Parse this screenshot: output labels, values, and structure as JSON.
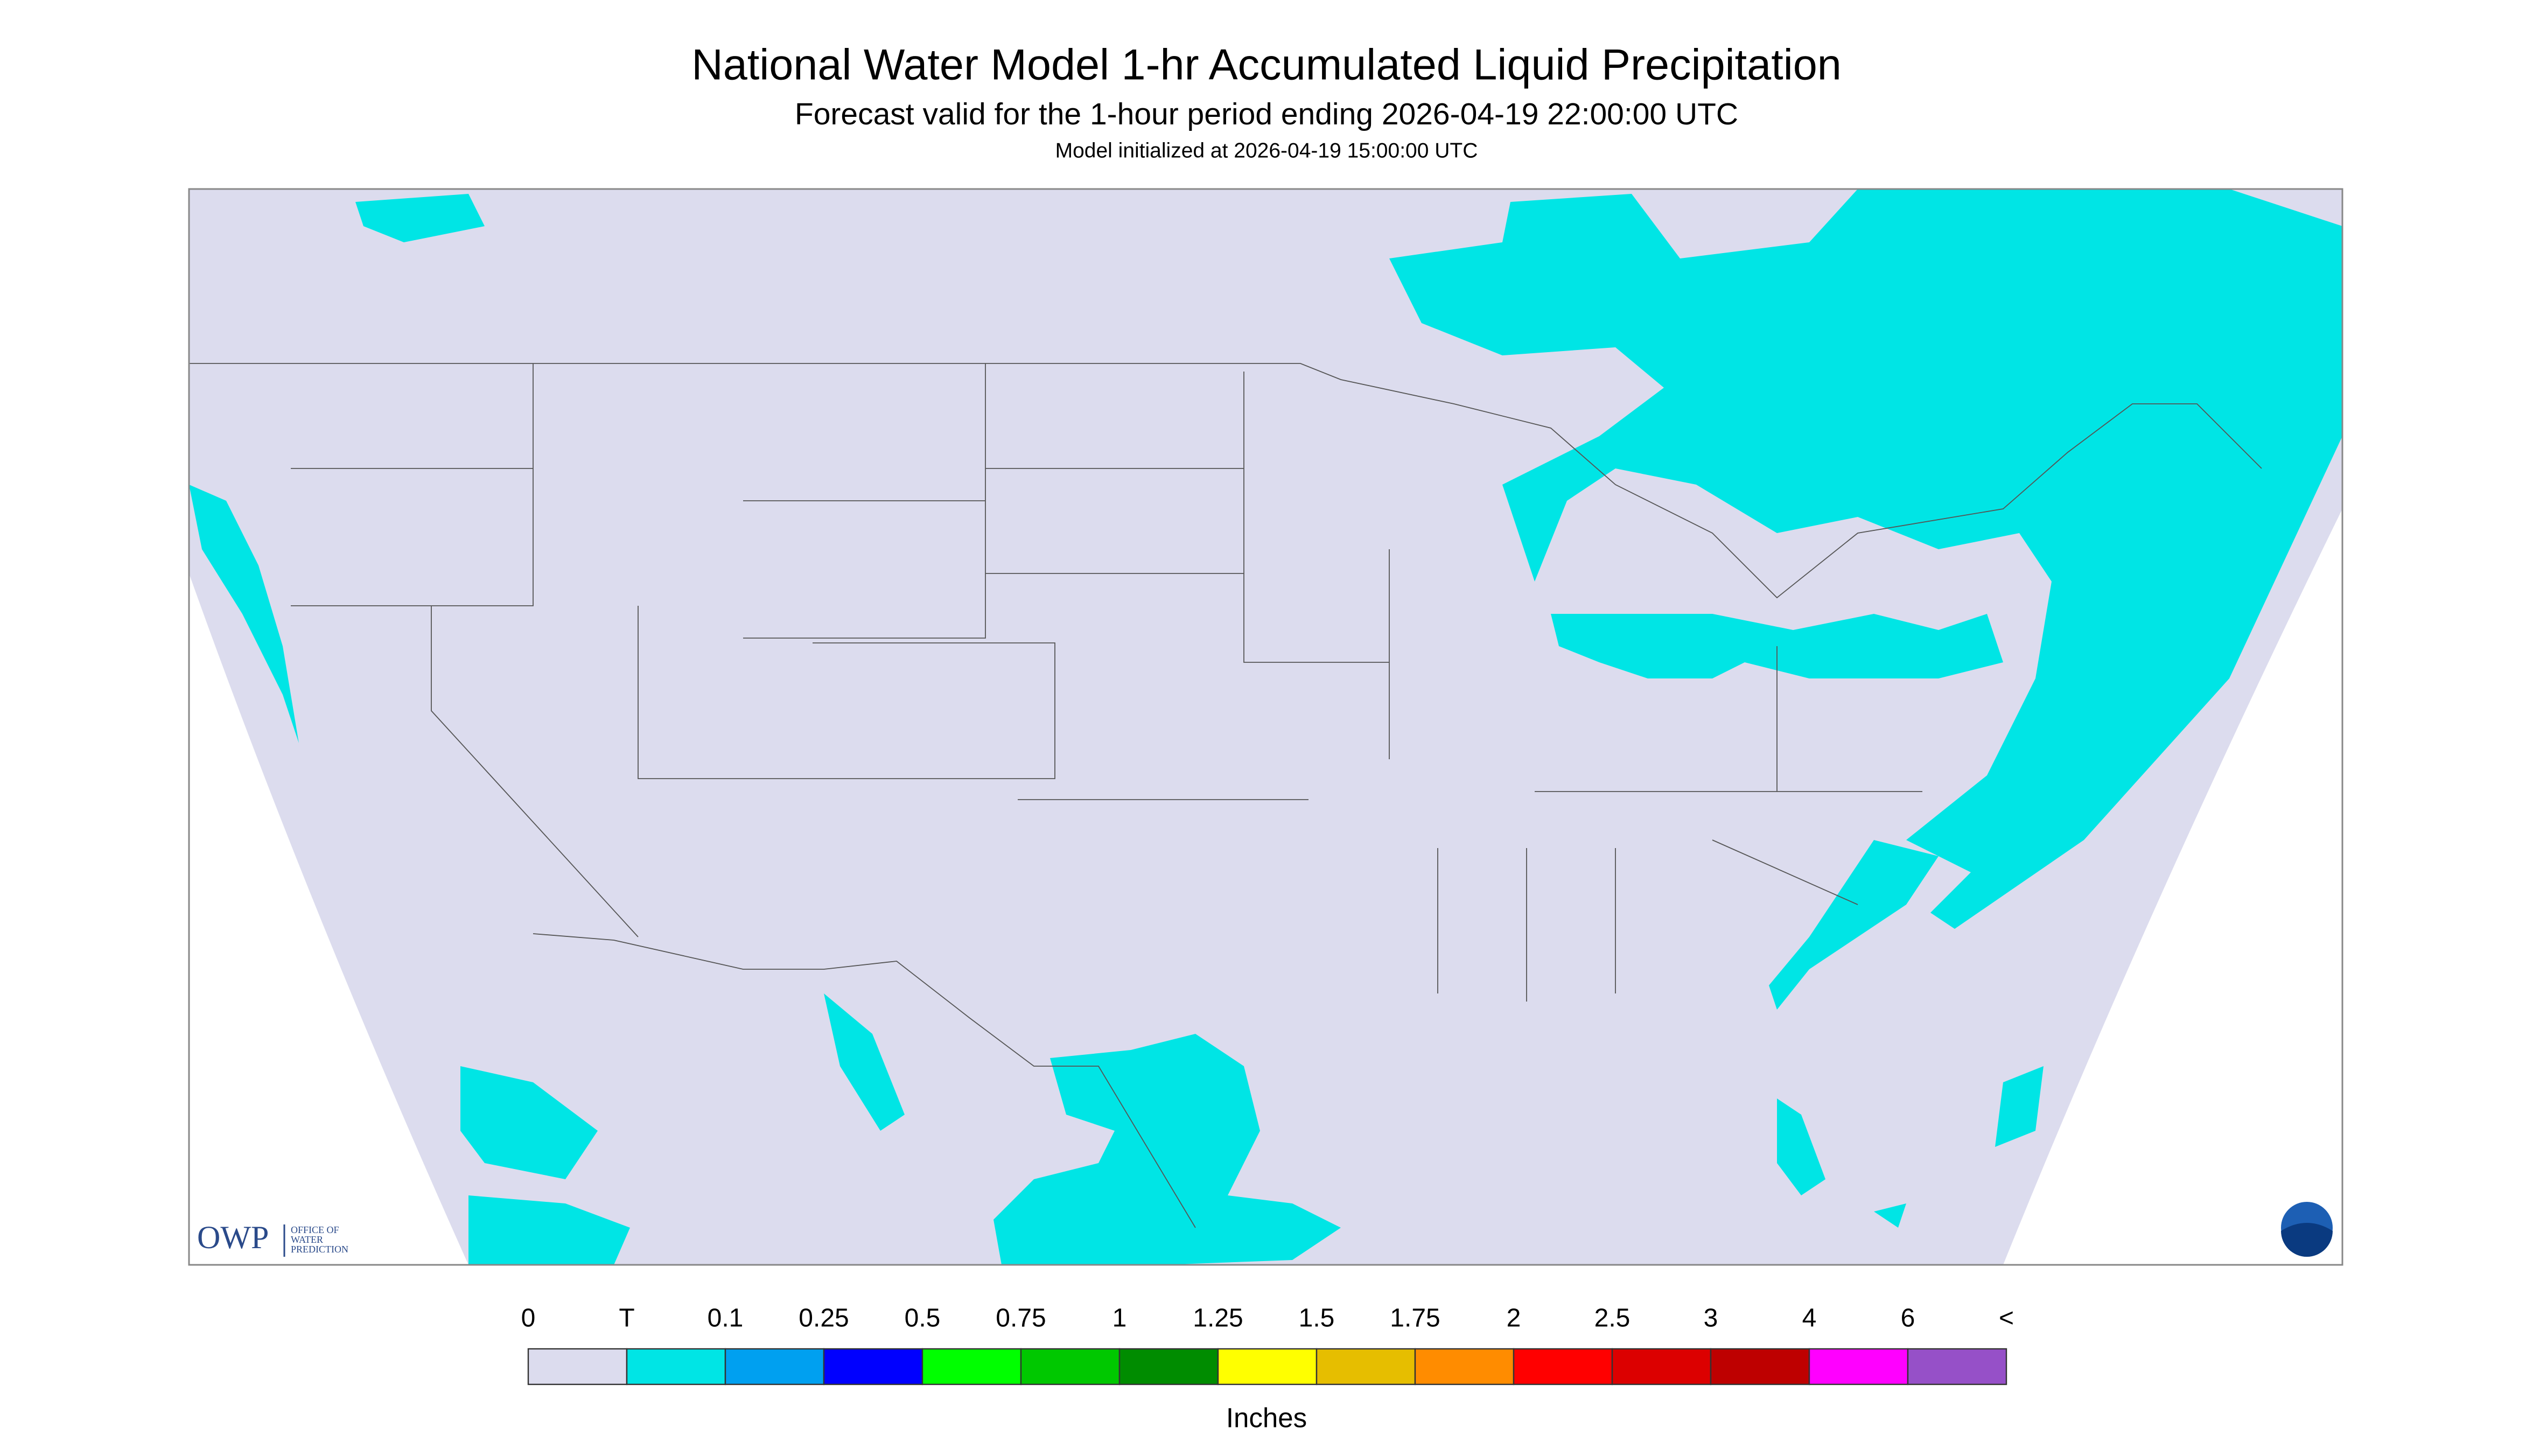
{
  "header": {
    "title": "National Water Model 1-hr Accumulated Liquid Precipitation",
    "subtitle": "Forecast valid for the 1-hour period ending 2026-04-19 22:00:00 UTC",
    "note": "Model initialized at 2026-04-19 15:00:00 UTC"
  },
  "logo": {
    "acronym": "OWP",
    "lines": [
      "OFFICE OF",
      "WATER",
      "PREDICTION"
    ]
  },
  "legend": {
    "labels": [
      "0",
      "T",
      "0.1",
      "0.25",
      "0.5",
      "0.75",
      "1",
      "1.25",
      "1.5",
      "1.75",
      "2",
      "2.5",
      "3",
      "4",
      "6",
      "<"
    ],
    "colors": [
      "#dcdcee",
      "#00e5e5",
      "#00a0f0",
      "#0000ff",
      "#00ff00",
      "#00c800",
      "#008c00",
      "#ffff00",
      "#e6be00",
      "#ff8c00",
      "#ff0000",
      "#dc0000",
      "#be0000",
      "#ff00ff",
      "#9650c8"
    ],
    "unit": "Inches"
  }
}
